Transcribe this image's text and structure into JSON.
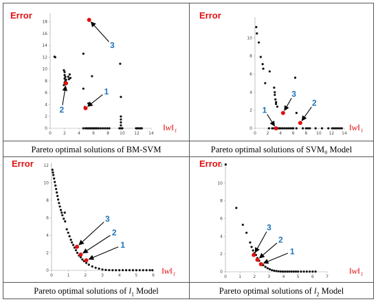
{
  "chart_data": [
    {
      "type": "scatter",
      "caption": "Pareto optimal solutions of BM-SVM",
      "ylabel": "Error",
      "xlabel": "‖w‖₁",
      "xlim": [
        0,
        14
      ],
      "ylim": [
        0,
        19
      ],
      "xticks": [
        0,
        2,
        4,
        6,
        8,
        10,
        12,
        14
      ],
      "yticks": [
        0,
        2,
        4,
        6,
        8,
        10,
        12,
        14,
        16,
        18
      ],
      "points": [
        [
          0.6,
          12.1
        ],
        [
          0.7,
          12.0
        ],
        [
          1.9,
          9.8
        ],
        [
          2.0,
          9.5
        ],
        [
          2.0,
          9.0
        ],
        [
          2.1,
          8.7
        ],
        [
          2.0,
          8.4
        ],
        [
          2.2,
          8.2
        ],
        [
          2.1,
          8.0
        ],
        [
          2.0,
          7.7
        ],
        [
          2.2,
          7.5
        ],
        [
          1.9,
          7.3
        ],
        [
          2.5,
          8.7
        ],
        [
          2.6,
          8.3
        ],
        [
          2.7,
          9.1
        ],
        [
          2.8,
          8.5
        ],
        [
          4.6,
          12.6
        ],
        [
          5.8,
          8.8
        ],
        [
          4.6,
          6.7
        ],
        [
          9.7,
          10.9
        ],
        [
          9.8,
          5.3
        ],
        [
          9.8,
          2.0
        ],
        [
          9.8,
          1.5
        ],
        [
          9.8,
          1.0
        ],
        [
          9.8,
          0.5
        ],
        [
          5.3,
          4.2
        ],
        [
          4.8,
          3.6
        ],
        [
          4.6,
          0.0
        ],
        [
          4.9,
          0.0
        ],
        [
          5.1,
          0.0
        ],
        [
          5.3,
          0.0
        ],
        [
          5.5,
          0.0
        ],
        [
          5.7,
          0.0
        ],
        [
          5.9,
          0.0
        ],
        [
          6.1,
          0.0
        ],
        [
          6.3,
          0.0
        ],
        [
          6.5,
          0.0
        ],
        [
          6.7,
          0.0
        ],
        [
          7.0,
          0.0
        ],
        [
          7.3,
          0.0
        ],
        [
          7.6,
          0.0
        ],
        [
          7.9,
          0.0
        ],
        [
          8.2,
          0.0
        ],
        [
          9.6,
          0.0
        ],
        [
          9.8,
          0.0
        ],
        [
          10.0,
          0.0
        ],
        [
          11.9,
          0.0
        ],
        [
          12.1,
          0.0
        ],
        [
          12.3,
          0.0
        ],
        [
          12.5,
          0.0
        ],
        [
          12.7,
          0.0
        ]
      ],
      "highlighted": [
        {
          "label": "1",
          "x": 4.9,
          "y": 3.4,
          "lx": 7.8,
          "ly": 6.2
        },
        {
          "label": "2",
          "x": 2.2,
          "y": 7.6,
          "lx": 1.6,
          "ly": 3.1
        },
        {
          "label": "3",
          "x": 5.4,
          "y": 18.3,
          "lx": 8.6,
          "ly": 14.0
        }
      ],
      "highlight_color": "#e01010",
      "label_color": "#1e73b8"
    },
    {
      "type": "scatter",
      "caption": "Pareto optimal solutions of SVM₀ Model",
      "ylabel": "Error",
      "xlabel": "‖w‖₁",
      "xlim": [
        0,
        14
      ],
      "ylim": [
        0,
        12
      ],
      "xticks": [
        0,
        2,
        4,
        6,
        8,
        10,
        12,
        14
      ],
      "yticks": [
        0,
        2,
        4,
        6,
        8,
        10
      ],
      "points": [
        [
          0.2,
          11.2
        ],
        [
          0.3,
          10.5
        ],
        [
          0.6,
          9.5
        ],
        [
          0.9,
          7.9
        ],
        [
          1.2,
          7.1
        ],
        [
          1.3,
          6.6
        ],
        [
          1.6,
          5.0
        ],
        [
          2.3,
          6.3
        ],
        [
          3.0,
          4.5
        ],
        [
          3.1,
          4.0
        ],
        [
          3.1,
          3.7
        ],
        [
          3.2,
          3.2
        ],
        [
          3.3,
          2.9
        ],
        [
          3.3,
          2.7
        ],
        [
          3.5,
          2.4
        ],
        [
          6.3,
          5.6
        ],
        [
          6.5,
          1.7
        ],
        [
          2.2,
          0.0
        ],
        [
          2.7,
          0.0
        ],
        [
          3.0,
          0.0
        ],
        [
          3.2,
          0.0
        ],
        [
          3.4,
          0.0
        ],
        [
          3.6,
          0.0
        ],
        [
          3.8,
          0.0
        ],
        [
          4.0,
          0.0
        ],
        [
          4.3,
          0.0
        ],
        [
          4.6,
          0.0
        ],
        [
          4.9,
          0.0
        ],
        [
          5.2,
          0.0
        ],
        [
          5.5,
          0.0
        ],
        [
          5.8,
          0.0
        ],
        [
          6.0,
          0.0
        ],
        [
          6.5,
          0.0
        ],
        [
          7.5,
          0.0
        ],
        [
          8.0,
          0.0
        ],
        [
          8.3,
          0.0
        ],
        [
          8.6,
          0.0
        ],
        [
          9.5,
          0.0
        ],
        [
          10.5,
          0.0
        ],
        [
          11.5,
          0.0
        ],
        [
          12.1,
          0.0
        ],
        [
          12.4,
          0.0
        ],
        [
          12.7,
          0.0
        ],
        [
          13.0,
          0.0
        ],
        [
          13.3,
          0.0
        ],
        [
          13.6,
          0.0
        ]
      ],
      "highlighted": [
        {
          "label": "1",
          "x": 3.3,
          "y": 0.0,
          "lx": 1.5,
          "ly": 2.0
        },
        {
          "label": "2",
          "x": 7.1,
          "y": 0.6,
          "lx": 9.3,
          "ly": 2.8
        },
        {
          "label": "3",
          "x": 4.4,
          "y": 1.7,
          "lx": 6.1,
          "ly": 3.8
        }
      ],
      "highlight_color": "#e01010",
      "label_color": "#1e73b8"
    },
    {
      "type": "scatter",
      "caption_prefix": "Pareto optimal solutions of ",
      "caption_symbol": "l",
      "caption_sub": "1",
      "caption_suffix": "  Model",
      "ylabel": "Error",
      "xlabel": "‖w‖₁",
      "xlim": [
        0,
        6
      ],
      "ylim": [
        0,
        12
      ],
      "xticks": [
        0,
        1,
        2,
        3,
        4,
        5,
        6
      ],
      "yticks": [
        0,
        2,
        4,
        6,
        8,
        10,
        12
      ],
      "points": [
        [
          0.05,
          11.5
        ],
        [
          0.08,
          11.2
        ],
        [
          0.11,
          10.9
        ],
        [
          0.15,
          10.5
        ],
        [
          0.19,
          10.1
        ],
        [
          0.23,
          9.7
        ],
        [
          0.27,
          9.3
        ],
        [
          0.31,
          8.9
        ],
        [
          0.35,
          8.5
        ],
        [
          0.39,
          8.1
        ],
        [
          0.44,
          7.7
        ],
        [
          0.49,
          7.3
        ],
        [
          0.55,
          6.9
        ],
        [
          0.6,
          6.6
        ],
        [
          0.64,
          6.3
        ],
        [
          0.78,
          6.6
        ],
        [
          0.72,
          5.9
        ],
        [
          0.8,
          5.6
        ],
        [
          0.9,
          4.7
        ],
        [
          0.98,
          4.3
        ],
        [
          1.06,
          3.9
        ],
        [
          1.14,
          3.5
        ],
        [
          1.2,
          3.2
        ],
        [
          1.28,
          2.9
        ],
        [
          1.36,
          2.6
        ],
        [
          1.44,
          2.3
        ],
        [
          1.52,
          2.0
        ],
        [
          1.62,
          1.7
        ],
        [
          1.72,
          1.5
        ],
        [
          1.82,
          1.25
        ],
        [
          1.92,
          1.05
        ],
        [
          2.05,
          0.85
        ],
        [
          2.2,
          0.65
        ],
        [
          2.4,
          0.45
        ],
        [
          2.6,
          0.3
        ],
        [
          2.8,
          0.2
        ],
        [
          3.0,
          0.1
        ],
        [
          3.2,
          0.05
        ],
        [
          3.4,
          0.03
        ],
        [
          3.6,
          0.02
        ],
        [
          3.8,
          0.02
        ],
        [
          4.0,
          0.02
        ],
        [
          4.2,
          0.02
        ],
        [
          4.4,
          0.02
        ],
        [
          4.6,
          0.02
        ],
        [
          4.8,
          0.02
        ],
        [
          5.0,
          0.02
        ],
        [
          5.2,
          0.02
        ],
        [
          5.4,
          0.02
        ],
        [
          5.6,
          0.02
        ],
        [
          5.8,
          0.02
        ],
        [
          5.95,
          0.02
        ]
      ],
      "highlighted": [
        {
          "label": "1",
          "x": 2.05,
          "y": 1.15,
          "lx": 4.2,
          "ly": 2.9
        },
        {
          "label": "2",
          "x": 1.72,
          "y": 1.8,
          "lx": 3.7,
          "ly": 4.3
        },
        {
          "label": "3",
          "x": 1.5,
          "y": 2.7,
          "lx": 3.3,
          "ly": 5.9
        }
      ],
      "highlight_color": "#e01010",
      "label_color": "#1e73b8"
    },
    {
      "type": "scatter",
      "caption_prefix": "Pareto optimal solutions of  ",
      "caption_symbol": "l",
      "caption_sub": "2",
      "caption_suffix": "  Model",
      "ylabel": "Error",
      "xlabel": "‖w‖₁",
      "xlim": [
        0,
        7
      ],
      "ylim": [
        0,
        12
      ],
      "xticks": [
        0,
        1,
        2,
        3,
        4,
        5,
        6,
        7
      ],
      "yticks": [
        0,
        2,
        4,
        6,
        8,
        10,
        12
      ],
      "points": [
        [
          0.02,
          12.1
        ],
        [
          0.75,
          7.2
        ],
        [
          1.2,
          5.3
        ],
        [
          1.45,
          4.4
        ],
        [
          1.7,
          3.3
        ],
        [
          1.8,
          2.8
        ],
        [
          1.9,
          2.4
        ],
        [
          2.0,
          2.1
        ],
        [
          2.1,
          1.9
        ],
        [
          2.2,
          1.55
        ],
        [
          2.32,
          1.25
        ],
        [
          2.45,
          0.95
        ],
        [
          2.6,
          0.75
        ],
        [
          2.75,
          0.55
        ],
        [
          2.9,
          0.4
        ],
        [
          3.05,
          0.28
        ],
        [
          3.2,
          0.18
        ],
        [
          3.35,
          0.12
        ],
        [
          3.5,
          0.08
        ],
        [
          3.65,
          0.05
        ],
        [
          3.8,
          0.03
        ],
        [
          3.95,
          0.02
        ],
        [
          4.1,
          0.02
        ],
        [
          4.25,
          0.02
        ],
        [
          4.4,
          0.02
        ],
        [
          4.55,
          0.02
        ],
        [
          4.7,
          0.02
        ],
        [
          4.85,
          0.02
        ],
        [
          5.0,
          0.02
        ],
        [
          5.2,
          0.02
        ],
        [
          5.4,
          0.02
        ],
        [
          5.6,
          0.02
        ],
        [
          5.8,
          0.02
        ],
        [
          6.0,
          0.02
        ],
        [
          6.2,
          0.02
        ]
      ],
      "highlighted": [
        {
          "label": "1",
          "x": 2.45,
          "y": 0.85,
          "lx": 4.6,
          "ly": 2.3
        },
        {
          "label": "2",
          "x": 2.2,
          "y": 1.35,
          "lx": 3.8,
          "ly": 3.6
        },
        {
          "label": "3",
          "x": 1.95,
          "y": 1.9,
          "lx": 3.0,
          "ly": 5.0
        }
      ],
      "highlight_color": "#e01010",
      "label_color": "#1e73b8"
    }
  ]
}
